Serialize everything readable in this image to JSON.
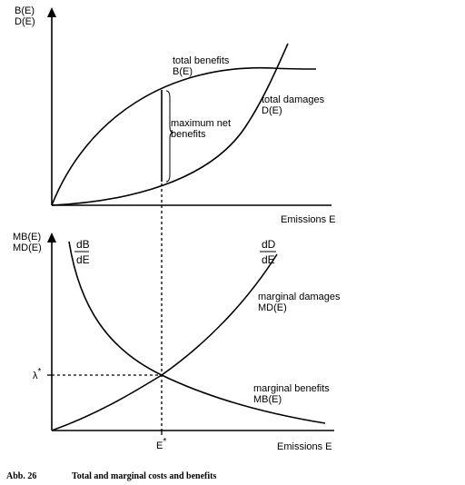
{
  "top_panel": {
    "y_label_line1": "B(E)",
    "y_label_line2": "D(E)",
    "x_label": "Emissions E",
    "benefits_label_line1": "total benefits",
    "benefits_label_line2": "B(E)",
    "damages_label_line1": "total damages",
    "damages_label_line2": "D(E)",
    "max_net_line1": "maximum net",
    "max_net_line2": "benefits"
  },
  "bottom_panel": {
    "y_label_line1": "MB(E)",
    "y_label_line2": "MD(E)",
    "x_label": "Emissions E",
    "dB_num": "dB",
    "dB_den": "dE",
    "dD_num": "dD",
    "dD_den": "dE",
    "marginal_damages_line1": "marginal damages",
    "marginal_damages_line2": "MD(E)",
    "marginal_benefits_line1": "marginal benefits",
    "marginal_benefits_line2": "MB(E)",
    "lambda_base": "λ",
    "lambda_sup": "*",
    "estar_base": "E",
    "estar_sup": "*"
  },
  "caption": {
    "number": "Abb. 26",
    "title": "Total and marginal costs and benefits"
  }
}
